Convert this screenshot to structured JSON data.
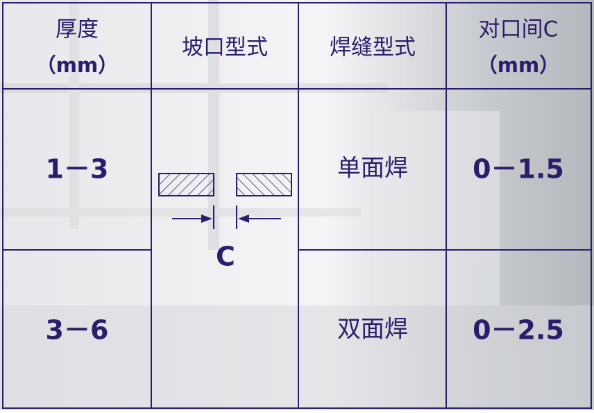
{
  "table": {
    "header": [
      [
        "厚度",
        "（mm）"
      ],
      [
        "坡口型式"
      ],
      [
        "焊缝型式"
      ],
      [
        "对口间C",
        "（mm）"
      ]
    ],
    "rows": [
      [
        "1－3",
        "单面焊",
        "0－1.5"
      ],
      [
        "3－6",
        "双面焊",
        "0－2.5"
      ]
    ],
    "diagram_label": "C"
  }
}
